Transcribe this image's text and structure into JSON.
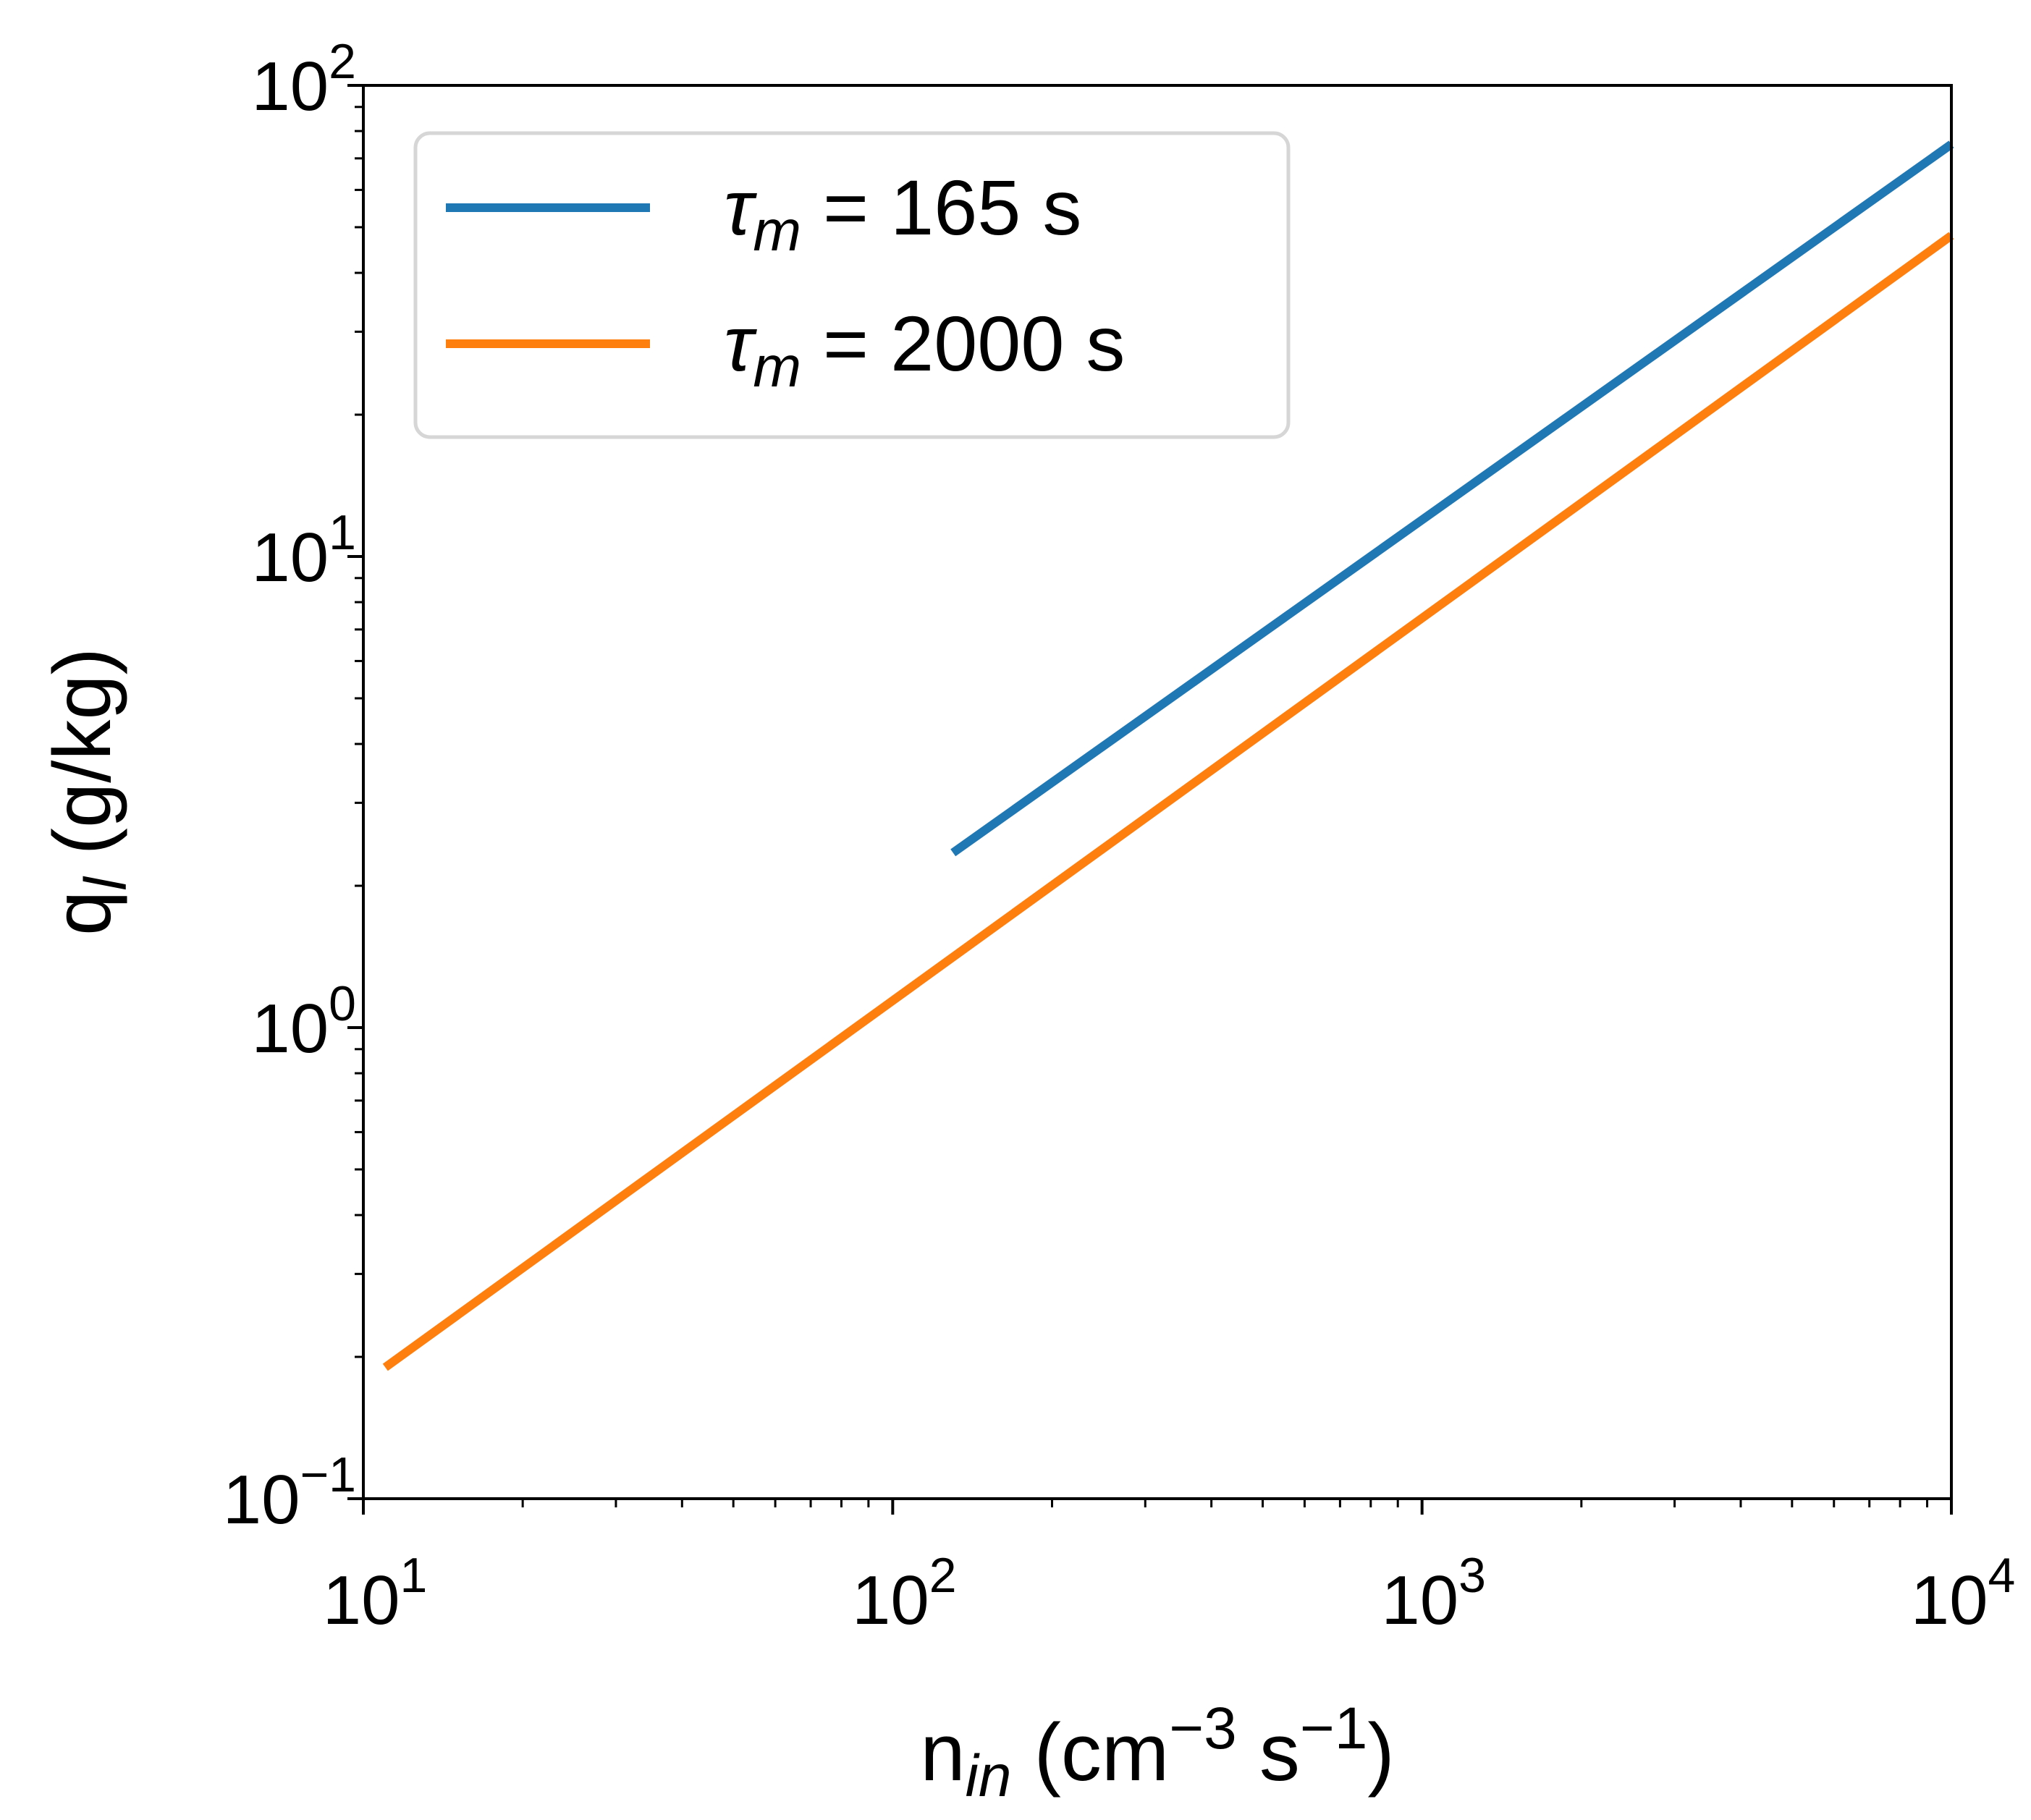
{
  "chart_data": {
    "type": "line",
    "xscale": "log",
    "yscale": "log",
    "xlim": [
      10,
      10000
    ],
    "ylim": [
      0.1,
      100
    ],
    "xlabel": {
      "base": "n",
      "sub": "in",
      "unit_open": " (cm",
      "exp1": "−3",
      "mid": " s",
      "exp2": "−1",
      "unit_close": ")"
    },
    "ylabel": {
      "base": "q",
      "sub": "l",
      "unit": " (g/kg)"
    },
    "x_ticks": [
      {
        "value": 10,
        "base": "10",
        "exp": "1"
      },
      {
        "value": 100,
        "base": "10",
        "exp": "2"
      },
      {
        "value": 1000,
        "base": "10",
        "exp": "3"
      },
      {
        "value": 10000,
        "base": "10",
        "exp": "4"
      }
    ],
    "y_ticks": [
      {
        "value": 0.1,
        "base": "10",
        "exp": "−1"
      },
      {
        "value": 1,
        "base": "10",
        "exp": "0"
      },
      {
        "value": 10,
        "base": "10",
        "exp": "1"
      },
      {
        "value": 100,
        "base": "10",
        "exp": "2"
      }
    ],
    "grid": false,
    "legend_position": "top-left",
    "series": [
      {
        "symbol": "τ",
        "sub": "m",
        "rest": " = 165 s",
        "color": "#1f77b4",
        "x": [
          130,
          10000
        ],
        "y": [
          2.35,
          75
        ]
      },
      {
        "symbol": "τ",
        "sub": "m",
        "rest": " = 2000 s",
        "color": "#ff7f0e",
        "x": [
          11,
          10000
        ],
        "y": [
          0.19,
          48
        ]
      }
    ]
  }
}
